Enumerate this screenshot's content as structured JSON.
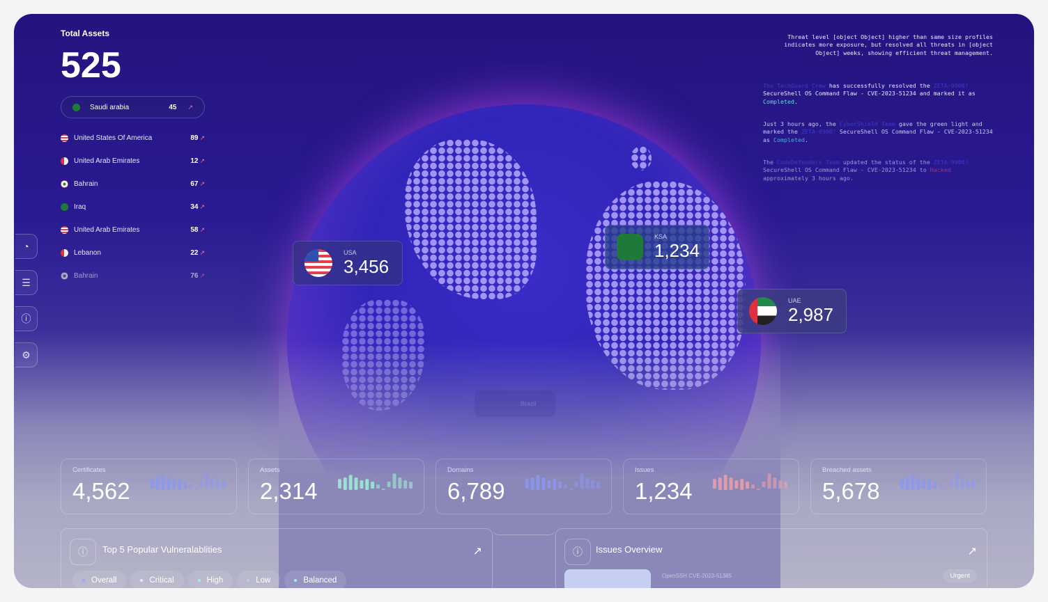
{
  "total_assets": {
    "title": "Total Assets",
    "value": "525"
  },
  "selected_country": {
    "name": "Saudi arabia",
    "value": "45",
    "flag": "saudi-flag"
  },
  "countries": [
    {
      "name": "United States Of America",
      "value": "89",
      "flag": "usa-flag"
    },
    {
      "name": "United Arab Emirates",
      "value": "12",
      "flag": "uae-flag"
    },
    {
      "name": "Bahrain",
      "value": "67",
      "flag": "lebanon-flag"
    },
    {
      "name": "Iraq",
      "value": "34",
      "flag": "saudi-flag"
    },
    {
      "name": "United Arab Emirates",
      "value": "58",
      "flag": "usa-flag"
    },
    {
      "name": "Lebanon",
      "value": "22",
      "flag": "uae-flag"
    },
    {
      "name": "Bahrain",
      "value": "76",
      "flag": "lebanon-flag"
    }
  ],
  "sidebar": [
    "dashboard-icon",
    "server-icon",
    "alert-icon",
    "gear-icon"
  ],
  "log": {
    "summary": "Threat level [object Object] higher than same size profiles indicates more exposure, but resolved all threats in [object Object] weeks, showing efficient threat management.",
    "entries": [
      {
        "a": "The TechGuard Crew",
        "b": " has successfully resolved the ",
        "c": "ZETA-9900!",
        "d": " SecureShell OS Command Flaw - CVE-2023-51234 and marked it as ",
        "e": "Completed",
        "f": "."
      },
      {
        "a": "Just 3 hours ago, the ",
        "b": "CyberShield Team",
        "c": " gave the green light and marked the ",
        "d": "ZETA-9900!",
        "e": " SecureShell OS Command Flaw - CVE-2023-51234 as ",
        "f": "Completed",
        "g": "."
      },
      {
        "a": "The ",
        "b": "CodeDefenders Team",
        "c": " updated the status of the ",
        "d": "ZETA-9900!",
        "e": " SecureShell OS Command Flaw - CVE-2023-51234 to ",
        "f": "Hacked",
        "g": " approximately 3 hours ago."
      }
    ]
  },
  "map_cards": [
    {
      "label": "USA",
      "value": "3,456"
    },
    {
      "label": "KSA",
      "value": "1,234"
    },
    {
      "label": "UAE",
      "value": "2,987"
    },
    {
      "label": "Brazil",
      "value": ""
    }
  ],
  "stats": [
    {
      "label": "Certificates",
      "value": "4,562",
      "color": "#8a98f0"
    },
    {
      "label": "Assets",
      "value": "2,314",
      "color": "#9ef0d6"
    },
    {
      "label": "Domains",
      "value": "6,789",
      "color": "#8a98f0"
    },
    {
      "label": "Issues",
      "value": "1,234",
      "color": "#f0a0a8"
    },
    {
      "label": "Breached assets",
      "value": "5,678",
      "color": "#8a98f0"
    }
  ],
  "vulns": {
    "title": "Top 5 Popular Vulneralablities",
    "filters": [
      {
        "label": "Overall",
        "color": "#9aa8f0"
      },
      {
        "label": "Critical",
        "color": "#e8e8f0"
      },
      {
        "label": "High",
        "color": "#9ef0e0"
      },
      {
        "label": "Low",
        "color": "#c8c8e0"
      },
      {
        "label": "Balanced",
        "color": "#9ef0e0"
      }
    ]
  },
  "issues": {
    "title": "Issues Overview",
    "item": "OpenSSH CVE-2023-51385",
    "badge": "Urgent"
  }
}
